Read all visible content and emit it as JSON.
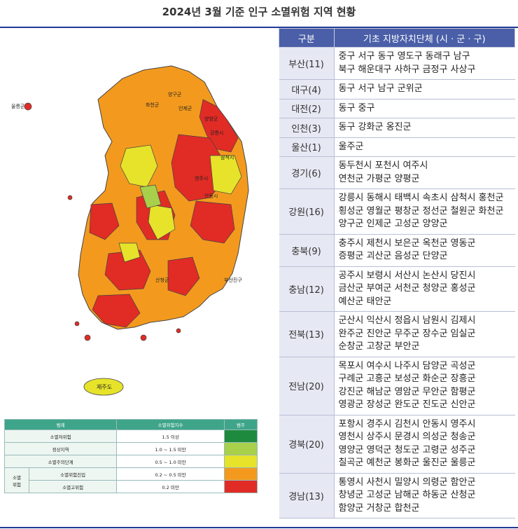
{
  "title": "2024년 3월 기준 인구 소멸위험 지역 현황",
  "map": {
    "labels": {
      "ulleung": "울릉군",
      "jeju": "제주도",
      "gangneung": "강릉시",
      "sancheong": "산청군",
      "samcheok": "삼척시",
      "andong": "안동시",
      "yangyang": "양양군",
      "inje": "인제군",
      "hwacheon": "화천군",
      "yanggu": "양구군",
      "busan_jin": "부산진구",
      "yeongju": "영주시"
    },
    "colors": {
      "sea": "#ffffff",
      "border": "#555555",
      "very_high": "#e12b25",
      "entry": "#f39a1e",
      "attention": "#e6e32a",
      "normal": "#a8d04a",
      "low": "#1e8a3e"
    }
  },
  "legend": {
    "headers": [
      "범례",
      "소멸위험지수",
      "범주"
    ],
    "rows": [
      {
        "group": "",
        "label": "소멸저위험",
        "range": "1.5 이상",
        "color": "#1e8a3e"
      },
      {
        "group": "",
        "label": "정상지역",
        "range": "1.0 ~ 1.5 미만",
        "color": "#a8d04a"
      },
      {
        "group": "",
        "label": "소멸주의단계",
        "range": "0.5 ~ 1.0 미만",
        "color": "#e6e32a"
      },
      {
        "group": "소멸\n위험",
        "label": "소멸위험진입",
        "range": "0.2 ~ 0.5 미만",
        "color": "#f39a1e"
      },
      {
        "group": "",
        "label": "소멸고위험",
        "range": "0.2 미만",
        "color": "#e12b25"
      }
    ]
  },
  "table": {
    "headers": [
      "구분",
      "기초 지방자치단체 (시 · 군 · 구)"
    ],
    "rows": [
      {
        "region": "부산(11)",
        "lines": [
          "중구 서구 동구 영도구 동래구 남구",
          "북구 해운대구 사하구 금정구 사상구"
        ]
      },
      {
        "region": "대구(4)",
        "lines": [
          "동구 서구 남구 군위군"
        ]
      },
      {
        "region": "대전(2)",
        "lines": [
          "동구 중구"
        ]
      },
      {
        "region": "인천(3)",
        "lines": [
          "동구 강화군 옹진군"
        ]
      },
      {
        "region": "울산(1)",
        "lines": [
          "울주군"
        ]
      },
      {
        "region": "경기(6)",
        "lines": [
          "동두천시 포천시 여주시",
          "연천군 가평군 양평군"
        ]
      },
      {
        "region": "강원(16)",
        "lines": [
          "강릉시 동해시 태백시 속초시 삼척시 홍천군",
          "횡성군 영월군 평창군 정선군 철원군 화천군",
          "양구군 인제군 고성군 양양군"
        ]
      },
      {
        "region": "충북(9)",
        "lines": [
          "충주시 제천시 보은군 옥천군 영동군",
          "증평군 괴산군 음성군 단양군"
        ]
      },
      {
        "region": "충남(12)",
        "lines": [
          "공주시 보령시 서산시 논산시 당진시",
          "금산군 부여군 서천군 청양군 홍성군",
          "예산군 태안군"
        ]
      },
      {
        "region": "전북(13)",
        "lines": [
          "군산시 익산시 정읍시 남원시 김제시",
          "완주군 진안군 무주군 장수군 임실군",
          "순창군 고창군 부안군"
        ]
      },
      {
        "region": "전남(20)",
        "lines": [
          "목포시 여수시 나주시 담양군 곡성군",
          "구례군 고흥군 보성군 화순군 장흥군",
          "강진군 해남군 영암군 무안군 함평군",
          "영광군 장성군 완도군 진도군 신안군"
        ]
      },
      {
        "region": "경북(20)",
        "lines": [
          "포항시 경주시 김천시 안동시 영주시",
          "영천시 상주시 문경시 의성군 청송군",
          "영양군 영덕군 청도군 고령군 성주군",
          "칠곡군 예천군 봉화군 울진군 울릉군"
        ]
      },
      {
        "region": "경남(13)",
        "lines": [
          "통영시 사천시 밀양시 의령군 함안군",
          "창녕군 고성군 남해군 하동군 산청군",
          "함양군 거창군 합천군"
        ]
      }
    ]
  }
}
